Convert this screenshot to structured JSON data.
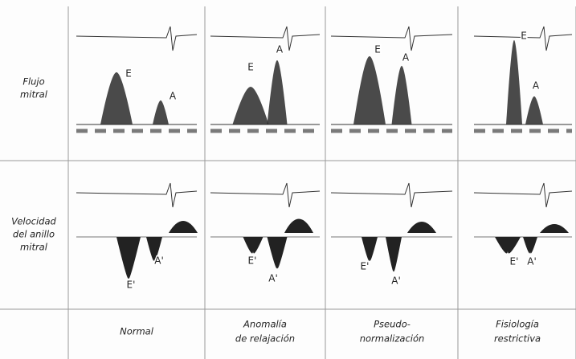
{
  "row_labels": [
    [
      "Flujo",
      "mitral"
    ],
    [
      "Velocidad",
      "del anillo",
      "mitral"
    ]
  ],
  "column_labels": [
    [
      "Normal"
    ],
    [
      "Anomalía",
      "de relajación"
    ],
    [
      "Pseudo-",
      "normalización"
    ],
    [
      "Fisiología",
      "restrictiva"
    ]
  ],
  "panels": {
    "mitral_flow": [
      [
        "E",
        "A"
      ],
      [
        "E",
        "A"
      ],
      [
        "E",
        "A"
      ],
      [
        "E",
        "A"
      ]
    ],
    "annulus_velocity": [
      [
        "E'",
        "A'"
      ],
      [
        "E'",
        "A'"
      ],
      [
        "E'",
        "A'"
      ],
      [
        "E'",
        "A'"
      ]
    ]
  }
}
